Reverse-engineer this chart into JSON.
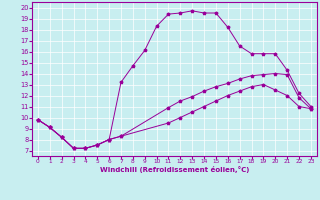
{
  "xlabel": "Windchill (Refroidissement éolien,°C)",
  "bg_color": "#c8eef0",
  "line_color": "#990099",
  "xlim": [
    -0.5,
    23.5
  ],
  "ylim": [
    6.5,
    20.5
  ],
  "xticks": [
    0,
    1,
    2,
    3,
    4,
    5,
    6,
    7,
    8,
    9,
    10,
    11,
    12,
    13,
    14,
    15,
    16,
    17,
    18,
    19,
    20,
    21,
    22,
    23
  ],
  "yticks": [
    7,
    8,
    9,
    10,
    11,
    12,
    13,
    14,
    15,
    16,
    17,
    18,
    19,
    20
  ],
  "line1_x": [
    0,
    1,
    2,
    3,
    4,
    5,
    6,
    7,
    11,
    12,
    13,
    14,
    15,
    16,
    17,
    18,
    19,
    20,
    21,
    22,
    23
  ],
  "line1_y": [
    9.8,
    9.1,
    8.2,
    7.2,
    7.2,
    7.5,
    8.0,
    8.3,
    10.9,
    11.5,
    11.9,
    12.4,
    12.8,
    13.1,
    13.5,
    13.8,
    13.9,
    14.0,
    13.9,
    11.8,
    10.8
  ],
  "line2_x": [
    0,
    1,
    2,
    3,
    4,
    5,
    6,
    7,
    8,
    9,
    10,
    11,
    12,
    13,
    14,
    15,
    16,
    17,
    18,
    19,
    20,
    21,
    22,
    23
  ],
  "line2_y": [
    9.8,
    9.1,
    8.2,
    7.2,
    7.2,
    7.5,
    8.0,
    13.2,
    14.7,
    16.1,
    18.3,
    19.4,
    19.5,
    19.7,
    19.5,
    19.5,
    18.2,
    16.5,
    15.8,
    15.8,
    15.8,
    14.3,
    12.2,
    11.0
  ],
  "line3_x": [
    0,
    1,
    2,
    3,
    4,
    5,
    6,
    7,
    11,
    12,
    13,
    14,
    15,
    16,
    17,
    18,
    19,
    20,
    21,
    22,
    23
  ],
  "line3_y": [
    9.8,
    9.1,
    8.2,
    7.2,
    7.2,
    7.5,
    8.0,
    8.3,
    9.5,
    10.0,
    10.5,
    11.0,
    11.5,
    12.0,
    12.4,
    12.8,
    13.0,
    12.5,
    12.0,
    11.0,
    10.8
  ]
}
